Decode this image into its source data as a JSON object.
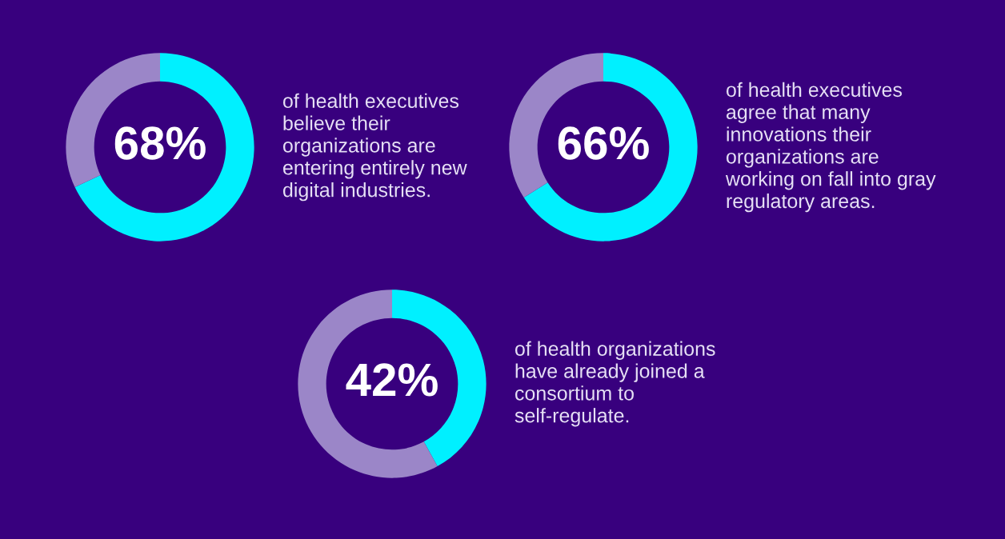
{
  "chart_data": [
    {
      "type": "donut",
      "categories": [
        null,
        null
      ],
      "values": [
        68,
        32
      ],
      "colors": [
        "#00f0ff",
        "#9b86c8"
      ],
      "value_labels": [
        "68%",
        null
      ],
      "annotations": [
        "of health executives\nbelieve their\norganizations are\nentering entirely new\ndigital industries."
      ]
    },
    {
      "type": "donut",
      "categories": [
        null,
        null
      ],
      "values": [
        66,
        34
      ],
      "colors": [
        "#00f0ff",
        "#9b86c8"
      ],
      "value_labels": [
        "66%",
        null
      ],
      "annotations": [
        "of health executives\nagree that many\ninnovations their\norganizations are\nworking on fall into gray\nregulatory areas."
      ]
    },
    {
      "type": "donut",
      "categories": [
        null,
        null
      ],
      "values": [
        42,
        58
      ],
      "colors": [
        "#00f0ff",
        "#9b86c8"
      ],
      "value_labels": [
        "42%",
        null
      ],
      "annotations": [
        "of health organizations\nhave already joined a\nconsortium to\nself-regulate."
      ]
    }
  ]
}
